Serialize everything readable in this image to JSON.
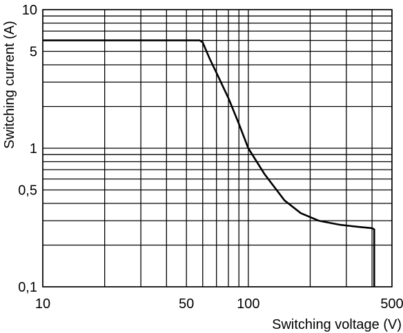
{
  "chart_data": {
    "type": "line",
    "x_scale": "log",
    "y_scale": "log",
    "xlim": [
      10,
      500
    ],
    "ylim": [
      0.1,
      10
    ],
    "xlabel": "Switching voltage (V)",
    "ylabel": "Switching current (A)",
    "x_ticks": [
      {
        "value": 10,
        "label": "10"
      },
      {
        "value": 50,
        "label": "50"
      },
      {
        "value": 100,
        "label": "100"
      },
      {
        "value": 500,
        "label": "500"
      }
    ],
    "y_ticks": [
      {
        "value": 10,
        "label": "10"
      },
      {
        "value": 5,
        "label": "5"
      },
      {
        "value": 1,
        "label": "1"
      },
      {
        "value": 0.5,
        "label": "0,5"
      },
      {
        "value": 0.1,
        "label": "0,1"
      }
    ],
    "x_grid": [
      10,
      20,
      30,
      40,
      50,
      60,
      70,
      80,
      90,
      100,
      200,
      300,
      400,
      500
    ],
    "y_grid": [
      0.1,
      0.2,
      0.3,
      0.4,
      0.5,
      0.6,
      0.7,
      0.8,
      0.9,
      1,
      2,
      3,
      4,
      5,
      6,
      7,
      8,
      9,
      10
    ],
    "grid": true,
    "series": [
      {
        "x": [
          10,
          58,
          60,
          65,
          70,
          80,
          90,
          100,
          120,
          150,
          180,
          220,
          280,
          350,
          400,
          410,
          410
        ],
        "y": [
          6,
          6,
          5.8,
          4.4,
          3.5,
          2.3,
          1.5,
          1.0,
          0.65,
          0.42,
          0.34,
          0.3,
          0.28,
          0.27,
          0.265,
          0.26,
          0.1
        ]
      }
    ]
  }
}
